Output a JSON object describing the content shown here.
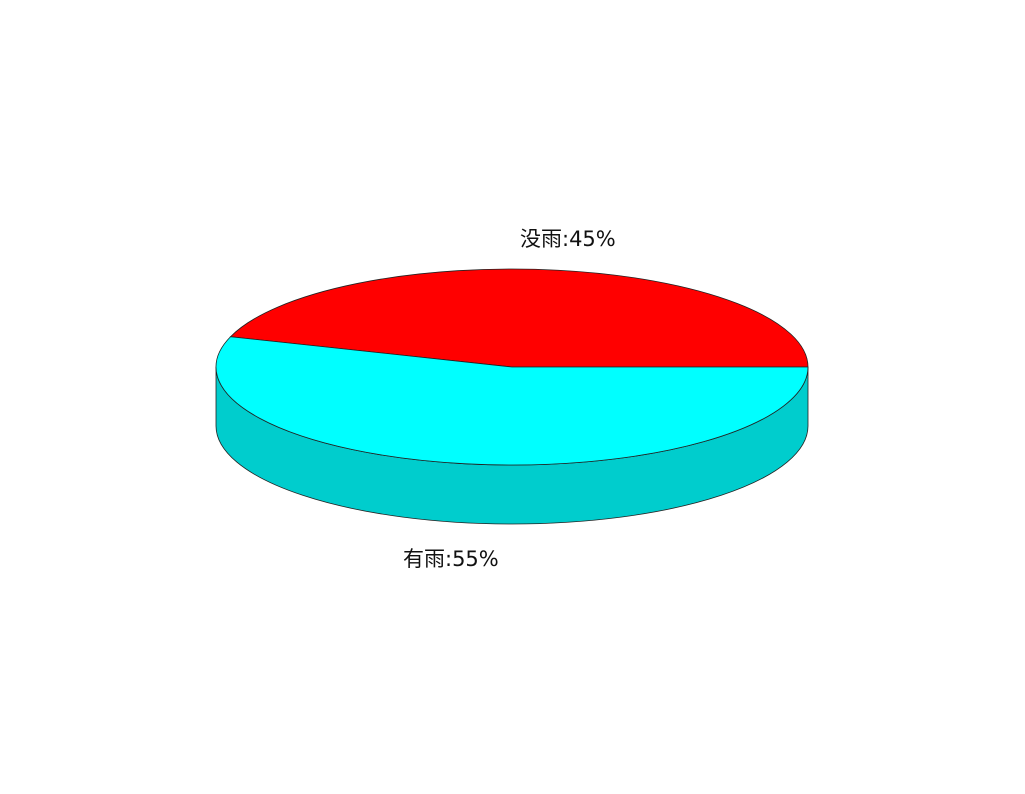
{
  "chart_data": {
    "type": "pie",
    "style": "3d",
    "title": "",
    "slices": [
      {
        "label": "没雨",
        "value": 45,
        "display": "没雨:45%",
        "color": "#ff0000",
        "side_color": "#cc0000"
      },
      {
        "label": "有雨",
        "value": 55,
        "display": "有雨:55%",
        "color": "#00ffff",
        "side_color": "#00cdcd"
      }
    ]
  }
}
